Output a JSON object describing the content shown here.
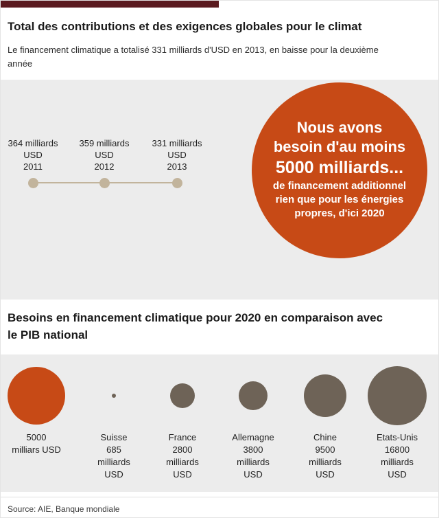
{
  "page": {
    "title": "Total des contributions et des exigences globales pour le climat",
    "subtitle": "Le financement climatique a totalisé 331 milliards d'USD en 2013, en baisse pour la deuxième année",
    "source": "Source: AIE, Banque mondiale"
  },
  "colors": {
    "accent_orange": "#c74a16",
    "header_bar_maroon": "#5a1a1f",
    "timeline_dot_tan": "#c2b49c",
    "bubble_brown": "#6e6357",
    "section_background": "#ececec"
  },
  "timeline": {
    "points": [
      {
        "amount": "364 milliards",
        "unit": "USD",
        "year": "2011"
      },
      {
        "amount": "359 milliards",
        "unit": "USD",
        "year": "2012"
      },
      {
        "amount": "331 milliards",
        "unit": "USD",
        "year": "2013"
      }
    ]
  },
  "need_circle": {
    "headline": [
      "Nous avons",
      "besoin d'au moins",
      "5000 milliards..."
    ],
    "subtext": [
      "de financement additionnel",
      "rien que pour les énergies",
      "propres, d'ici 2020"
    ]
  },
  "comparison": {
    "title": "Besoins en financement climatique pour 2020 en comparaison avec le PIB national",
    "bubbles": [
      {
        "lines": [
          "5000",
          "milliars USD"
        ]
      },
      {
        "lines": [
          "Suisse",
          "685",
          "milliards",
          "USD"
        ]
      },
      {
        "lines": [
          "France",
          "2800",
          "milliards",
          "USD"
        ]
      },
      {
        "lines": [
          "Allemagne",
          "3800",
          "milliards",
          "USD"
        ]
      },
      {
        "lines": [
          "Chine",
          "9500",
          "milliards",
          "USD"
        ]
      },
      {
        "lines": [
          "Etats-Unis",
          "16800",
          "milliards",
          "USD"
        ]
      }
    ]
  },
  "chart_data": [
    {
      "type": "line",
      "title": "Total des contributions et des exigences globales pour le climat",
      "x": [
        "2011",
        "2012",
        "2013"
      ],
      "values": [
        364,
        359,
        331
      ],
      "ylabel": "milliards USD",
      "annotation": "Nous avons besoin d'au moins 5000 milliards... de financement additionnel rien que pour les énergies propres, d'ici 2020",
      "grid": false,
      "legend_position": "none"
    },
    {
      "type": "scatter",
      "title": "Besoins en financement climatique pour 2020 en comparaison avec le PIB national",
      "categories": [
        "Besoin 2020 (5000 milliars USD)",
        "Suisse",
        "France",
        "Allemagne",
        "Chine",
        "Etats-Unis"
      ],
      "values": [
        5000,
        685,
        2800,
        3800,
        9500,
        16800
      ],
      "unit": "milliards USD",
      "encoding": "bubble-area",
      "grid": false,
      "legend_position": "none"
    }
  ]
}
